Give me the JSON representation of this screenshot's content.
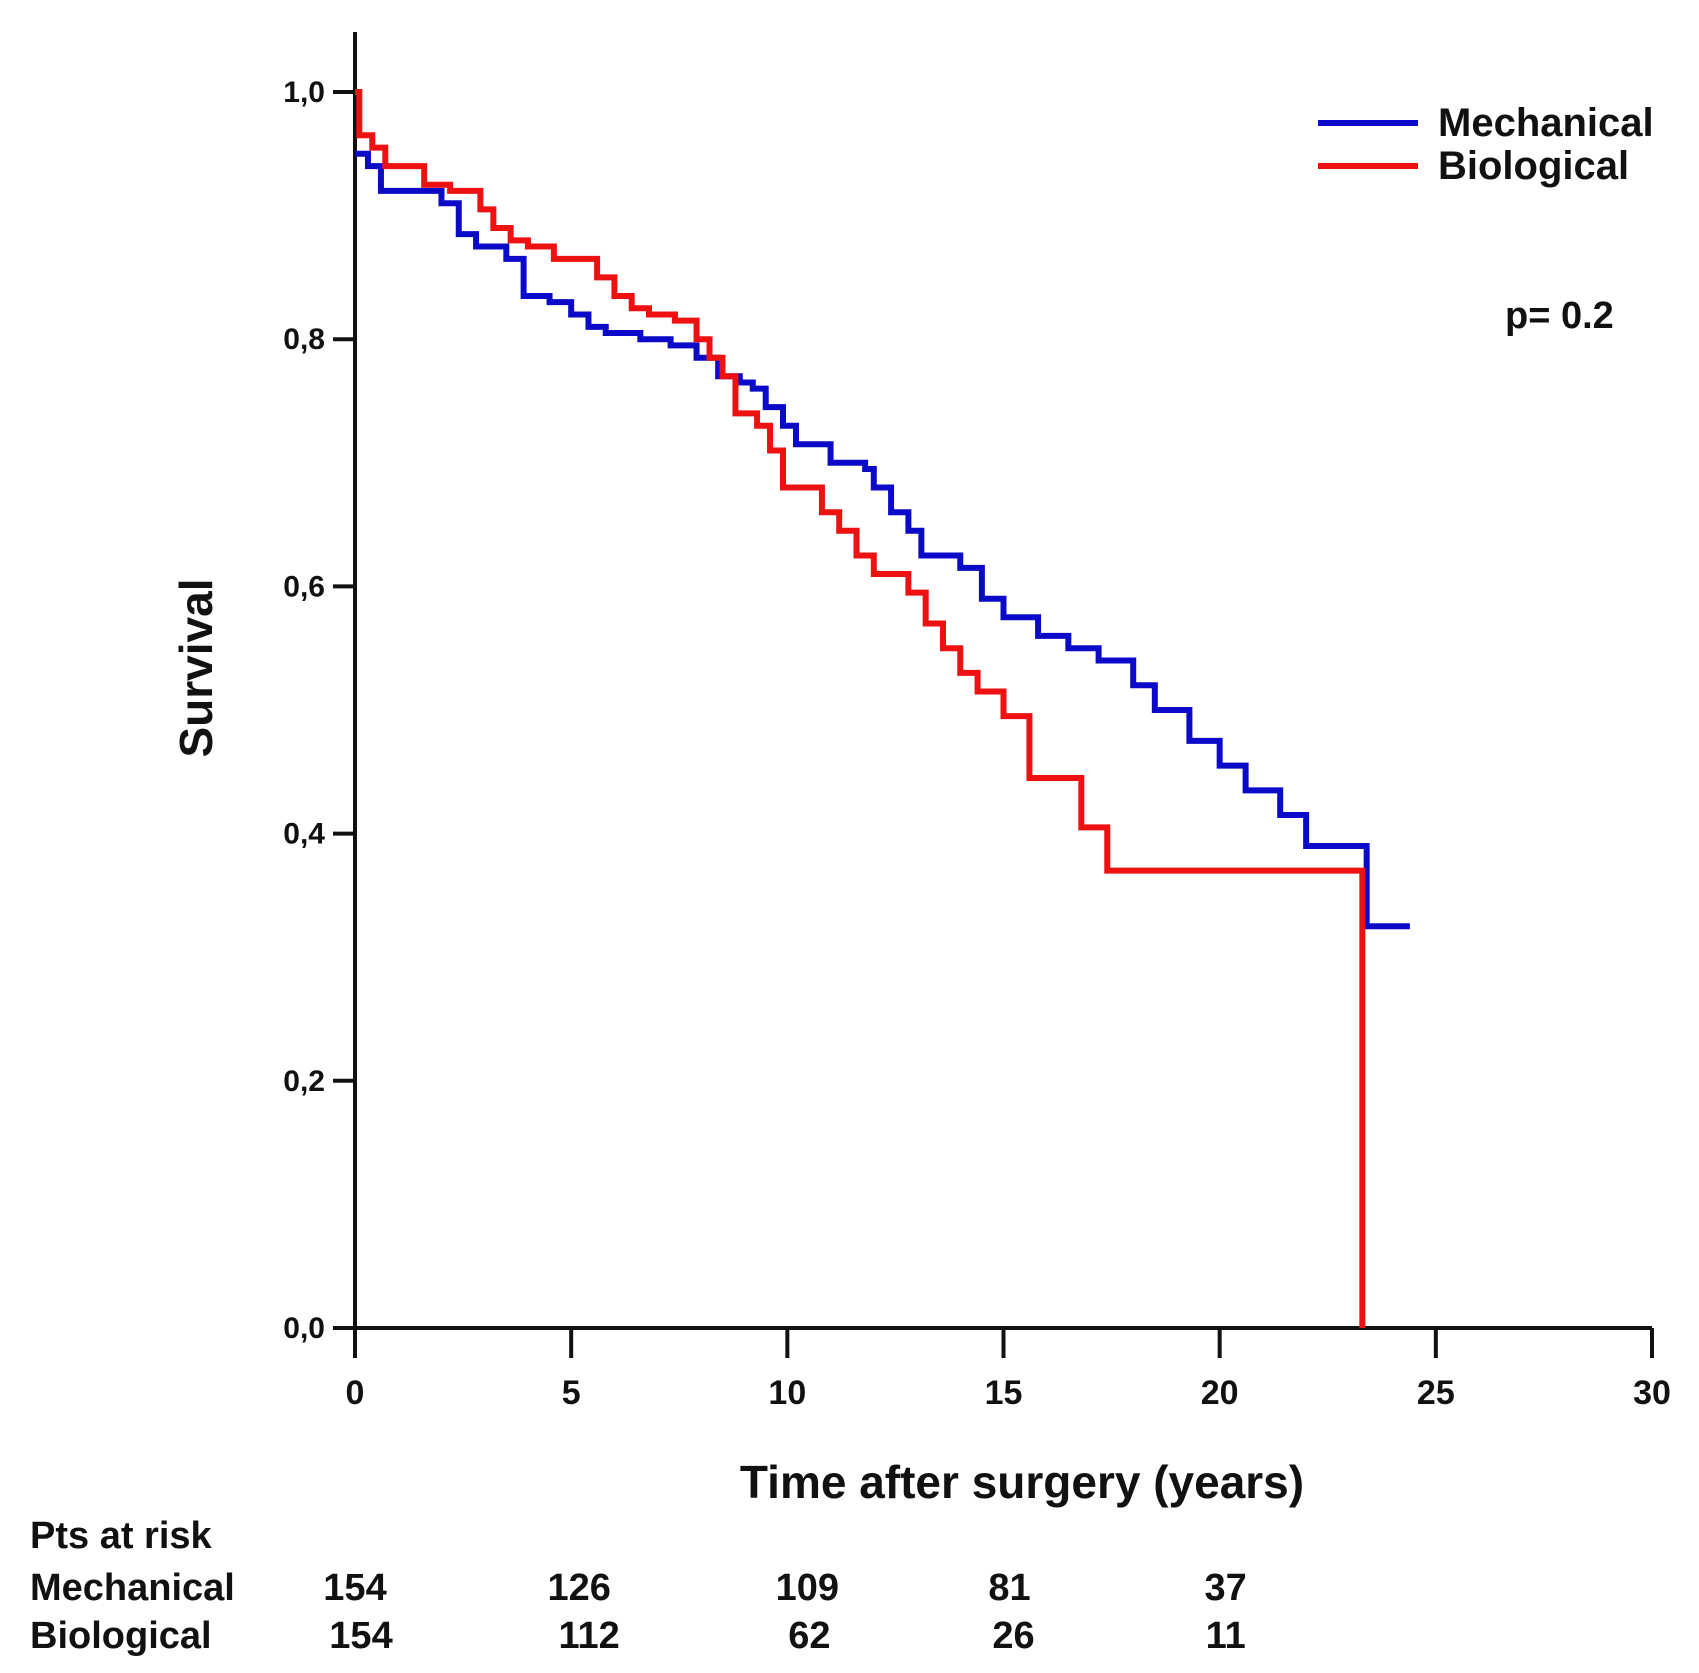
{
  "chart_data": {
    "type": "line",
    "subtype": "kaplan-meier",
    "xlabel": "Time after surgery (years)",
    "ylabel": "Survival",
    "xlim": [
      0,
      30
    ],
    "ylim": [
      0,
      1.0
    ],
    "xticks": [
      0,
      5,
      10,
      15,
      20,
      25,
      30
    ],
    "xtick_labels": [
      "0",
      "5",
      "10",
      "15",
      "20",
      "25",
      "30"
    ],
    "yticks": [
      0.0,
      0.2,
      0.4,
      0.6,
      0.8,
      1.0
    ],
    "ytick_labels": [
      "0,0",
      "0,2",
      "0,4",
      "0,6",
      "0,8",
      "1,0"
    ],
    "legend_position": "top-right",
    "annotation": "p= 0.2",
    "series": [
      {
        "name": "Mechanical",
        "color": "#0a0ac8",
        "x": [
          0,
          0.3,
          0.6,
          1.5,
          2.0,
          2.4,
          2.8,
          3.5,
          3.9,
          4.5,
          5.0,
          5.4,
          5.8,
          6.6,
          7.3,
          7.9,
          8.4,
          8.9,
          9.2,
          9.5,
          9.9,
          10.2,
          11.0,
          11.8,
          12.0,
          12.4,
          12.8,
          13.1,
          14.0,
          14.5,
          15.0,
          15.8,
          16.5,
          17.2,
          18.0,
          18.5,
          19.3,
          20.0,
          20.6,
          21.4,
          22.0,
          23.4,
          24.4
        ],
        "y": [
          0.95,
          0.94,
          0.92,
          0.92,
          0.91,
          0.885,
          0.875,
          0.865,
          0.835,
          0.83,
          0.82,
          0.81,
          0.805,
          0.8,
          0.795,
          0.785,
          0.77,
          0.765,
          0.76,
          0.745,
          0.73,
          0.715,
          0.7,
          0.695,
          0.68,
          0.66,
          0.645,
          0.625,
          0.615,
          0.59,
          0.575,
          0.56,
          0.55,
          0.54,
          0.52,
          0.5,
          0.475,
          0.455,
          0.435,
          0.415,
          0.39,
          0.325,
          0.325
        ]
      },
      {
        "name": "Biological",
        "color": "#ee1111",
        "x": [
          0,
          0.1,
          0.4,
          0.7,
          1.6,
          2.2,
          2.9,
          3.2,
          3.6,
          4.0,
          4.6,
          5.0,
          5.6,
          6.0,
          6.4,
          6.8,
          7.4,
          7.9,
          8.2,
          8.5,
          8.8,
          9.3,
          9.6,
          9.9,
          10.8,
          11.2,
          11.6,
          12.0,
          12.8,
          13.2,
          13.6,
          14.0,
          14.4,
          15.0,
          15.6,
          16.8,
          17.4,
          23.3
        ],
        "y": [
          1.0,
          0.965,
          0.955,
          0.94,
          0.925,
          0.92,
          0.905,
          0.89,
          0.88,
          0.875,
          0.865,
          0.865,
          0.85,
          0.835,
          0.825,
          0.82,
          0.815,
          0.8,
          0.785,
          0.77,
          0.74,
          0.73,
          0.71,
          0.68,
          0.66,
          0.645,
          0.625,
          0.61,
          0.595,
          0.57,
          0.55,
          0.53,
          0.515,
          0.495,
          0.445,
          0.405,
          0.37,
          0.0
        ]
      }
    ],
    "risk_table": {
      "header": "Pts at risk",
      "rows": [
        {
          "label": "Mechanical",
          "values": [
            "154",
            "126",
            "109",
            "81",
            "37"
          ]
        },
        {
          "label": "Biological",
          "values": [
            "154",
            "112",
            "62",
            "26",
            "11"
          ]
        }
      ]
    }
  }
}
